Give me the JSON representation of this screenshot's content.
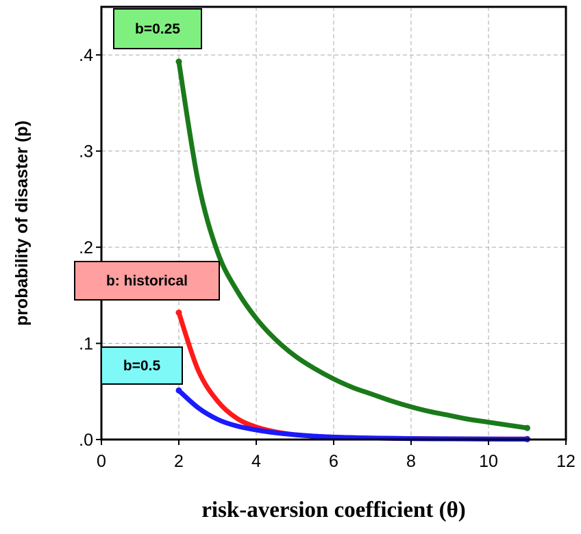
{
  "chart_data": {
    "type": "line",
    "title": "",
    "xlabel": "risk-aversion coefficient (θ)",
    "ylabel": "probability of disaster (p)",
    "xlim": [
      0,
      12
    ],
    "ylim": [
      0,
      0.45
    ],
    "grid": true,
    "x_ticks": [
      0,
      2,
      4,
      6,
      8,
      10,
      12
    ],
    "x_tick_labels": [
      "0",
      "2",
      "4",
      "6",
      "8",
      "10",
      "12"
    ],
    "y_ticks": [
      0,
      0.1,
      0.2,
      0.3,
      0.4
    ],
    "y_tick_labels": [
      ".0",
      ".1",
      ".2",
      ".3",
      ".4"
    ],
    "series": [
      {
        "label_text": "b=0.25",
        "color": "#1a7a1a",
        "label_bg": "#7ff07f",
        "x": [
          2,
          2.5,
          3,
          3.5,
          4,
          4.5,
          5,
          5.5,
          6,
          6.5,
          7,
          7.5,
          8,
          8.5,
          9,
          9.5,
          10,
          10.5,
          11
        ],
        "y": [
          0.393,
          0.268,
          0.195,
          0.155,
          0.126,
          0.104,
          0.087,
          0.074,
          0.063,
          0.054,
          0.047,
          0.04,
          0.034,
          0.029,
          0.025,
          0.021,
          0.018,
          0.015,
          0.012
        ]
      },
      {
        "label_text": "b: historical",
        "color": "#ff1a1a",
        "label_bg": "#ff9f9f",
        "x": [
          2,
          2.5,
          3,
          3.5,
          4,
          4.5,
          5,
          5.5,
          6,
          7,
          8,
          9,
          10,
          11
        ],
        "y": [
          0.132,
          0.072,
          0.04,
          0.022,
          0.013,
          0.008,
          0.005,
          0.0035,
          0.0025,
          0.0015,
          0.001,
          0.0008,
          0.0006,
          0.0005
        ]
      },
      {
        "label_text": "b=0.5",
        "color": "#1a1aff",
        "label_bg": "#7ff8f8",
        "x": [
          2,
          2.5,
          3,
          3.5,
          4,
          4.5,
          5,
          5.5,
          6,
          7,
          8,
          9,
          10,
          11
        ],
        "y": [
          0.051,
          0.033,
          0.021,
          0.014,
          0.01,
          0.007,
          0.005,
          0.0035,
          0.0025,
          0.0015,
          0.001,
          0.0007,
          0.0005,
          0.0004
        ]
      }
    ]
  }
}
